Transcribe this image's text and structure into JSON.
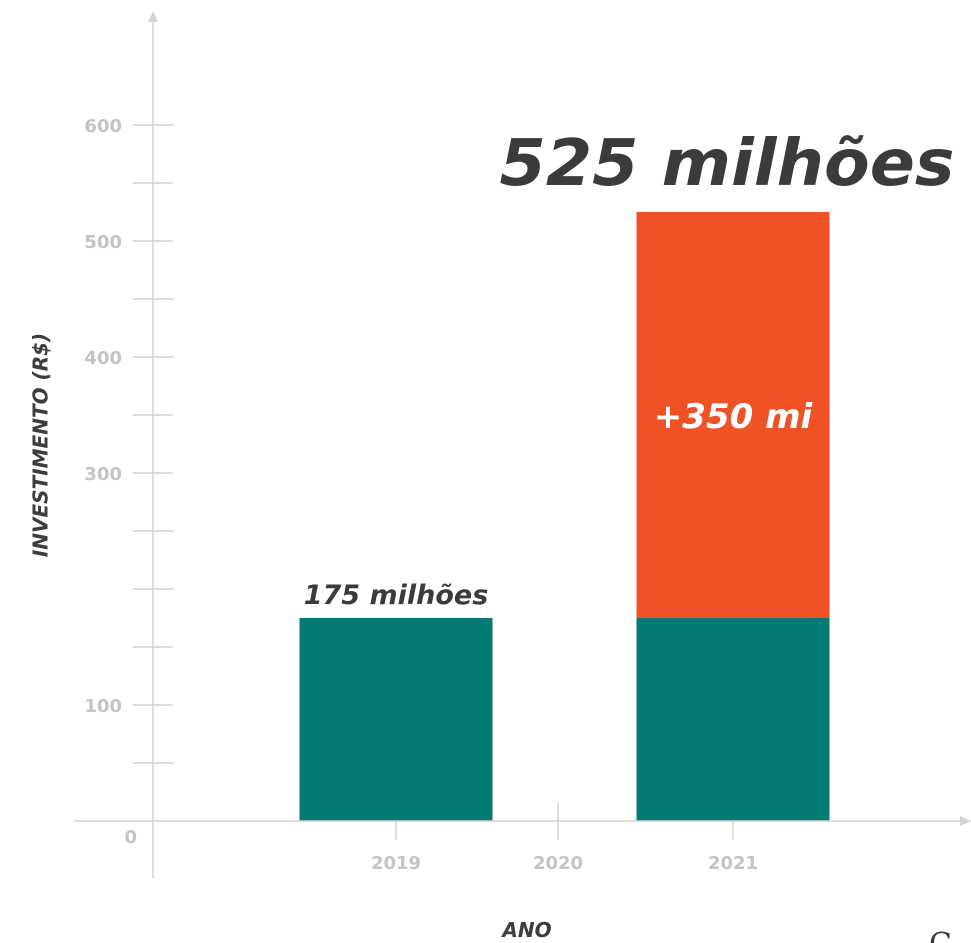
{
  "chart_data": {
    "type": "bar",
    "stacked": true,
    "categories": [
      "2019",
      "2020",
      "2021"
    ],
    "series": [
      {
        "values": [
          175,
          0,
          175
        ],
        "color": "#037a73"
      },
      {
        "values": [
          0,
          0,
          350
        ],
        "color": "#ef5224"
      }
    ],
    "totals": [
      175,
      0,
      525
    ],
    "data_labels": {
      "bar_2019_total": "175 milhões",
      "bar_2021_total": "525 milhões",
      "bar_2021_increase": "+350 mi"
    },
    "xlabel": "ANO",
    "ylabel": "INVESTIMENTO (R$)",
    "ylim": [
      0,
      600
    ],
    "y_tick_labels": [
      {
        "value": 0,
        "label": "0"
      },
      {
        "value": 100,
        "label": "100"
      },
      {
        "value": 300,
        "label": "300"
      },
      {
        "value": 400,
        "label": "400"
      },
      {
        "value": 500,
        "label": "500"
      },
      {
        "value": 600,
        "label": "600"
      }
    ],
    "y_minor_ticks": [
      50,
      100,
      150,
      200,
      250,
      300,
      350,
      400,
      450,
      500,
      550,
      600
    ],
    "grid": false,
    "legend": "none",
    "corner_glyph": "C"
  }
}
